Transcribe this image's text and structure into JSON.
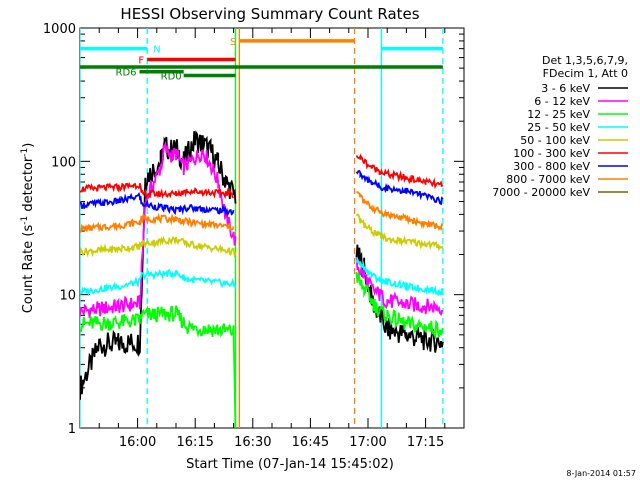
{
  "chart_data": {
    "type": "line",
    "title": "HESSI Observing Summary Count Rates",
    "xlabel": "Start Time (07-Jan-14 15:45:02)",
    "ylabel": "Count Rate (s",
    "ylabel_sup1": "-1",
    "ylabel_mid": " detector",
    "ylabel_sup2": "-1",
    "ylabel_end": ")",
    "y_scale": "log",
    "xlim": [
      0,
      100
    ],
    "ylim": [
      1,
      1000
    ],
    "x_tick_values": [
      15,
      30,
      45,
      60,
      75,
      90
    ],
    "x_ticks": [
      "16:00",
      "16:15",
      "16:30",
      "16:45",
      "17:00",
      "17:15"
    ],
    "y_ticks": [
      "1",
      "10",
      "100",
      "1000"
    ],
    "legend_position": "right",
    "legend_header": [
      "Det 1,3,5,6,7,9,",
      "FDecim 1, Att 0"
    ],
    "stamp": "8-Jan-2014 01:57",
    "series": [
      {
        "name": "3 - 6 keV",
        "color": "#000000",
        "x": [
          0,
          5,
          10,
          15.6,
          17,
          21,
          22,
          24,
          25,
          27,
          30,
          32,
          34,
          36,
          38,
          40.5,
          72,
          73,
          74,
          76,
          78,
          80,
          85,
          90,
          94.5
        ],
        "y": [
          2,
          4.2,
          4.3,
          4.4,
          75,
          100,
          130,
          120,
          125,
          100,
          145,
          135,
          120,
          95,
          70,
          55,
          20,
          18,
          16,
          9,
          7,
          5.5,
          5,
          4.6,
          4.4
        ]
      },
      {
        "name": "6 - 12 keV",
        "color": "#ff00ff",
        "x": [
          0,
          5,
          10,
          15.6,
          17,
          21,
          22,
          24,
          25,
          27,
          30,
          32,
          34,
          36,
          38,
          40.5,
          72,
          73,
          74,
          76,
          78,
          80,
          85,
          90,
          94.5
        ],
        "y": [
          7.5,
          7.8,
          8.2,
          8.6,
          50,
          90,
          125,
          110,
          115,
          90,
          105,
          120,
          95,
          70,
          38,
          25,
          17,
          15,
          14,
          11,
          10,
          9,
          8.5,
          8.2,
          8
        ]
      },
      {
        "name": "12 - 25 keV",
        "color": "#00ff00",
        "x": [
          0,
          10,
          15.6,
          16,
          25,
          28,
          40,
          40.5,
          72,
          73,
          74,
          76,
          78,
          80,
          85,
          90,
          94.5
        ],
        "y": [
          6,
          6.2,
          6.4,
          7,
          7.2,
          5.7,
          5.3,
          1,
          14,
          12,
          11,
          9,
          7.5,
          7,
          6,
          5.7,
          5.5
        ]
      },
      {
        "name": "25 - 50 keV",
        "color": "#00ffff",
        "x": [
          0,
          10,
          15.6,
          16,
          25,
          28,
          40,
          40.5,
          72,
          73,
          74,
          76,
          78,
          80,
          85,
          90,
          94.5
        ],
        "y": [
          10.5,
          11.5,
          12.5,
          14,
          14.5,
          13,
          12,
          11.5,
          18,
          17,
          16,
          14,
          13,
          12.5,
          11.5,
          11,
          10.5
        ]
      },
      {
        "name": "50 - 100 keV",
        "color": "#cccc00",
        "x": [
          0,
          10,
          15.6,
          16,
          25,
          28,
          40,
          40.5,
          72,
          73,
          74,
          76,
          78,
          80,
          85,
          90,
          94.5
        ],
        "y": [
          21,
          22,
          23,
          24,
          26,
          24,
          21,
          20,
          40,
          36,
          33,
          30,
          28,
          26,
          25,
          24,
          23
        ]
      },
      {
        "name": "100 - 300 keV",
        "color": "#ff0000",
        "x": [
          0,
          10,
          15.6,
          16,
          25,
          28,
          40,
          72,
          73,
          74,
          76,
          78,
          80,
          85,
          90,
          94.5
        ],
        "y": [
          62,
          64,
          67,
          57,
          57,
          60,
          57,
          110,
          105,
          100,
          90,
          85,
          80,
          75,
          70,
          65
        ]
      },
      {
        "name": "300 - 800 keV",
        "color": "#0000ff",
        "x": [
          0,
          10,
          15.6,
          16,
          25,
          28,
          40,
          72,
          73,
          74,
          76,
          78,
          80,
          85,
          90,
          94.5
        ],
        "y": [
          47,
          50,
          55,
          48,
          43,
          45,
          42,
          85,
          80,
          75,
          70,
          65,
          63,
          60,
          55,
          50
        ]
      },
      {
        "name": "800 - 7000 keV",
        "color": "#ff8000",
        "x": [
          0,
          10,
          15.6,
          16,
          25,
          28,
          40,
          72,
          73,
          74,
          76,
          78,
          80,
          85,
          90,
          94.5
        ],
        "y": [
          31,
          33,
          35,
          37,
          37,
          35,
          32,
          58,
          55,
          50,
          45,
          42,
          40,
          37,
          34,
          32
        ]
      },
      {
        "name": "7000 - 20000 keV",
        "color": "#806000",
        "x": [],
        "y": []
      }
    ],
    "intervals": [
      {
        "label": "N",
        "color": "#00ffff",
        "y": 700,
        "segments": [
          [
            0,
            17.5
          ],
          [
            78.5,
            94.5
          ]
        ]
      },
      {
        "label": "F",
        "color": "#ff0000",
        "y": 580,
        "segments": [
          [
            17.5,
            40.5
          ]
        ]
      },
      {
        "label": "RD0",
        "color": "#008000",
        "y": 440,
        "segments": [
          [
            27,
            40.5
          ]
        ]
      },
      {
        "label": "S",
        "color": "#ff8000",
        "y": 800,
        "segments": [
          [
            41.5,
            71.5
          ]
        ]
      },
      {
        "label": "RD6",
        "color": "#008000",
        "y": 470,
        "segments": [
          [
            15.5,
            27
          ]
        ]
      },
      {
        "label": "",
        "color": "#008000",
        "y": 510,
        "segments": [
          [
            0,
            94.5
          ]
        ]
      }
    ],
    "vlines": [
      {
        "x": 17.5,
        "color": "#00ffff",
        "style": "dashed"
      },
      {
        "x": 40.5,
        "color": "#00ff00",
        "style": "solid"
      },
      {
        "x": 41.5,
        "color": "#ff8000",
        "style": "solid"
      },
      {
        "x": 71.5,
        "color": "#ff8000",
        "style": "dashed"
      },
      {
        "x": 78.5,
        "color": "#00ffff",
        "style": "solid"
      },
      {
        "x": 94.5,
        "color": "#00ffff",
        "style": "dashed"
      },
      {
        "x": 0,
        "color": "#00ffff",
        "style": "solid"
      }
    ]
  }
}
